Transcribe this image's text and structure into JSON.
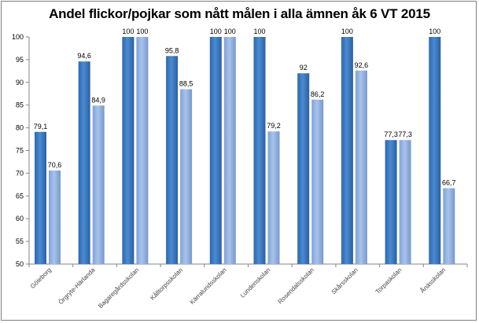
{
  "chart_data": {
    "type": "bar",
    "title": "Andel flickor/pojkar som nått målen i alla ämnen åk 6 VT 2015",
    "xlabel": "",
    "ylabel": "",
    "ylim": [
      50,
      100
    ],
    "yticks": [
      50,
      55,
      60,
      65,
      70,
      75,
      80,
      85,
      90,
      95,
      100
    ],
    "grid": false,
    "categories": [
      "Göteborg",
      "Örgryte-Härlanda",
      "Bagaregårdsskolan",
      "Kålltorpsskolan",
      "Kärralundsskolan",
      "Lundenskolan",
      "Rosendalsskolan",
      "Skårsskolan",
      "Torpaskolan",
      "Ånässkolan"
    ],
    "category_colors": [
      "#595959",
      "#595959",
      "#595959",
      "#595959",
      "#595959",
      "#595959",
      "#595959",
      "#c0504d",
      "#595959",
      "#595959"
    ],
    "series": [
      {
        "values": [
          79.1,
          94.6,
          100,
          95.8,
          100,
          100,
          92,
          100,
          77.3,
          100
        ],
        "color": "#3a77bd"
      },
      {
        "values": [
          70.6,
          84.9,
          100,
          88.5,
          100,
          79.2,
          86.2,
          92.6,
          77.3,
          66.7
        ],
        "color": "#8fb0e0"
      }
    ],
    "data_labels": [
      [
        "79,1",
        "94,6",
        "100",
        "95,8",
        "100",
        "100",
        "92",
        "100",
        "77,3",
        "100"
      ],
      [
        "70,6",
        "84,9",
        "100",
        "88,5",
        "100",
        "79,2",
        "86,2",
        "92,6",
        "77,3",
        "66,7"
      ]
    ]
  }
}
